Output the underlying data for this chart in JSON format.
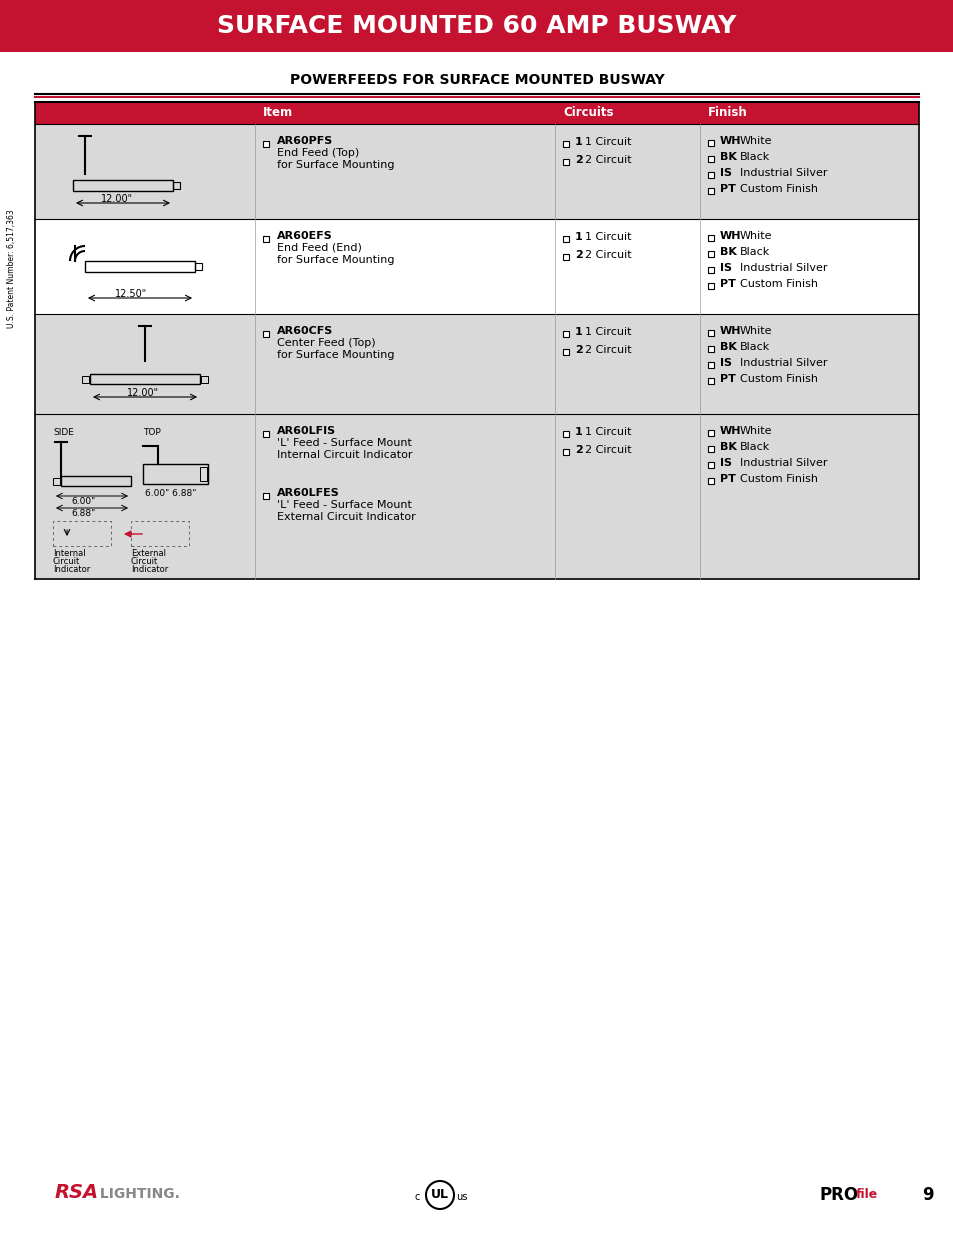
{
  "title": "SURFACE MOUNTED 60 AMP BUSWAY",
  "title_bg": "#C41230",
  "title_color": "#FFFFFF",
  "subtitle": "POWERFEEDS FOR SURFACE MOUNTED BUSWAY",
  "page_bg": "#FFFFFF",
  "header_bg": "#C41230",
  "header_color": "#FFFFFF",
  "row_bg_light": "#FFFFFF",
  "row_bg_dark": "#D9D9D9",
  "table_header_row": [
    "Item",
    "Circuits",
    "Finish"
  ],
  "rows": [
    {
      "code": "AR60PFS",
      "desc1": "End Feed (Top)",
      "desc2": "for Surface Mounting",
      "dim": "12.00",
      "circuits": [
        [
          "1",
          "1 Circuit"
        ],
        [
          "2",
          "2 Circuit"
        ]
      ],
      "finish": [
        [
          "WH",
          "White"
        ],
        [
          "BK",
          "Black"
        ],
        [
          "IS",
          "Industrial Silver"
        ],
        [
          "PT",
          "Custom Finish"
        ]
      ],
      "bg": "#D9D9D9"
    },
    {
      "code": "AR60EFS",
      "desc1": "End Feed (End)",
      "desc2": "for Surface Mounting",
      "dim": "12.50",
      "circuits": [
        [
          "1",
          "1 Circuit"
        ],
        [
          "2",
          "2 Circuit"
        ]
      ],
      "finish": [
        [
          "WH",
          "White"
        ],
        [
          "BK",
          "Black"
        ],
        [
          "IS",
          "Industrial Silver"
        ],
        [
          "PT",
          "Custom Finish"
        ]
      ],
      "bg": "#FFFFFF"
    },
    {
      "code": "AR60CFS",
      "desc1": "Center Feed (Top)",
      "desc2": "for Surface Mounting",
      "dim": "12.00",
      "circuits": [
        [
          "1",
          "1 Circuit"
        ],
        [
          "2",
          "2 Circuit"
        ]
      ],
      "finish": [
        [
          "WH",
          "White"
        ],
        [
          "BK",
          "Black"
        ],
        [
          "IS",
          "Industrial Silver"
        ],
        [
          "PT",
          "Custom Finish"
        ]
      ],
      "bg": "#D9D9D9"
    },
    {
      "code1": "AR60LFIS",
      "desc1": "L Feed - Surface Mount",
      "desc2": "Internal Circuit Indicator",
      "code2": "AR60LFES",
      "desc3": "L Feed - Surface Mount",
      "desc4": "External Circuit Indicator",
      "circuits": [
        [
          "1",
          "1 Circuit"
        ],
        [
          "2",
          "2 Circuit"
        ]
      ],
      "finish": [
        [
          "WH",
          "White"
        ],
        [
          "BK",
          "Black"
        ],
        [
          "IS",
          "Industrial Silver"
        ],
        [
          "PT",
          "Custom Finish"
        ]
      ],
      "bg": "#D9D9D9"
    }
  ],
  "patent_text": "U.S. Patent Number: 6,517,363",
  "footer_page": "9"
}
